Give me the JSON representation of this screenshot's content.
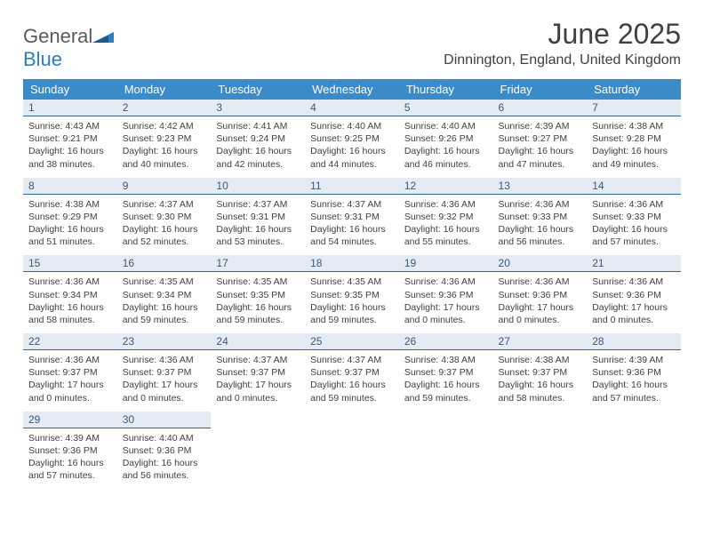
{
  "logo": {
    "line1": "General",
    "line2": "Blue"
  },
  "title": "June 2025",
  "location": "Dinnington, England, United Kingdom",
  "colors": {
    "header_bg": "#3b8bc8",
    "header_text": "#ffffff",
    "daynum_bg": "#e4ebf2",
    "daynum_text": "#3a5a78",
    "border": "#2b6aa0",
    "body_text": "#404040"
  },
  "dow": [
    "Sunday",
    "Monday",
    "Tuesday",
    "Wednesday",
    "Thursday",
    "Friday",
    "Saturday"
  ],
  "weeks": [
    [
      {
        "n": "1",
        "sr": "4:43 AM",
        "ss": "9:21 PM",
        "dl": "16 hours and 38 minutes."
      },
      {
        "n": "2",
        "sr": "4:42 AM",
        "ss": "9:23 PM",
        "dl": "16 hours and 40 minutes."
      },
      {
        "n": "3",
        "sr": "4:41 AM",
        "ss": "9:24 PM",
        "dl": "16 hours and 42 minutes."
      },
      {
        "n": "4",
        "sr": "4:40 AM",
        "ss": "9:25 PM",
        "dl": "16 hours and 44 minutes."
      },
      {
        "n": "5",
        "sr": "4:40 AM",
        "ss": "9:26 PM",
        "dl": "16 hours and 46 minutes."
      },
      {
        "n": "6",
        "sr": "4:39 AM",
        "ss": "9:27 PM",
        "dl": "16 hours and 47 minutes."
      },
      {
        "n": "7",
        "sr": "4:38 AM",
        "ss": "9:28 PM",
        "dl": "16 hours and 49 minutes."
      }
    ],
    [
      {
        "n": "8",
        "sr": "4:38 AM",
        "ss": "9:29 PM",
        "dl": "16 hours and 51 minutes."
      },
      {
        "n": "9",
        "sr": "4:37 AM",
        "ss": "9:30 PM",
        "dl": "16 hours and 52 minutes."
      },
      {
        "n": "10",
        "sr": "4:37 AM",
        "ss": "9:31 PM",
        "dl": "16 hours and 53 minutes."
      },
      {
        "n": "11",
        "sr": "4:37 AM",
        "ss": "9:31 PM",
        "dl": "16 hours and 54 minutes."
      },
      {
        "n": "12",
        "sr": "4:36 AM",
        "ss": "9:32 PM",
        "dl": "16 hours and 55 minutes."
      },
      {
        "n": "13",
        "sr": "4:36 AM",
        "ss": "9:33 PM",
        "dl": "16 hours and 56 minutes."
      },
      {
        "n": "14",
        "sr": "4:36 AM",
        "ss": "9:33 PM",
        "dl": "16 hours and 57 minutes."
      }
    ],
    [
      {
        "n": "15",
        "sr": "4:36 AM",
        "ss": "9:34 PM",
        "dl": "16 hours and 58 minutes."
      },
      {
        "n": "16",
        "sr": "4:35 AM",
        "ss": "9:34 PM",
        "dl": "16 hours and 59 minutes."
      },
      {
        "n": "17",
        "sr": "4:35 AM",
        "ss": "9:35 PM",
        "dl": "16 hours and 59 minutes."
      },
      {
        "n": "18",
        "sr": "4:35 AM",
        "ss": "9:35 PM",
        "dl": "16 hours and 59 minutes."
      },
      {
        "n": "19",
        "sr": "4:36 AM",
        "ss": "9:36 PM",
        "dl": "17 hours and 0 minutes."
      },
      {
        "n": "20",
        "sr": "4:36 AM",
        "ss": "9:36 PM",
        "dl": "17 hours and 0 minutes."
      },
      {
        "n": "21",
        "sr": "4:36 AM",
        "ss": "9:36 PM",
        "dl": "17 hours and 0 minutes."
      }
    ],
    [
      {
        "n": "22",
        "sr": "4:36 AM",
        "ss": "9:37 PM",
        "dl": "17 hours and 0 minutes."
      },
      {
        "n": "23",
        "sr": "4:36 AM",
        "ss": "9:37 PM",
        "dl": "17 hours and 0 minutes."
      },
      {
        "n": "24",
        "sr": "4:37 AM",
        "ss": "9:37 PM",
        "dl": "17 hours and 0 minutes."
      },
      {
        "n": "25",
        "sr": "4:37 AM",
        "ss": "9:37 PM",
        "dl": "16 hours and 59 minutes."
      },
      {
        "n": "26",
        "sr": "4:38 AM",
        "ss": "9:37 PM",
        "dl": "16 hours and 59 minutes."
      },
      {
        "n": "27",
        "sr": "4:38 AM",
        "ss": "9:37 PM",
        "dl": "16 hours and 58 minutes."
      },
      {
        "n": "28",
        "sr": "4:39 AM",
        "ss": "9:36 PM",
        "dl": "16 hours and 57 minutes."
      }
    ],
    [
      {
        "n": "29",
        "sr": "4:39 AM",
        "ss": "9:36 PM",
        "dl": "16 hours and 57 minutes."
      },
      {
        "n": "30",
        "sr": "4:40 AM",
        "ss": "9:36 PM",
        "dl": "16 hours and 56 minutes."
      },
      null,
      null,
      null,
      null,
      null
    ]
  ],
  "labels": {
    "sunrise": "Sunrise:",
    "sunset": "Sunset:",
    "daylight": "Daylight:"
  }
}
